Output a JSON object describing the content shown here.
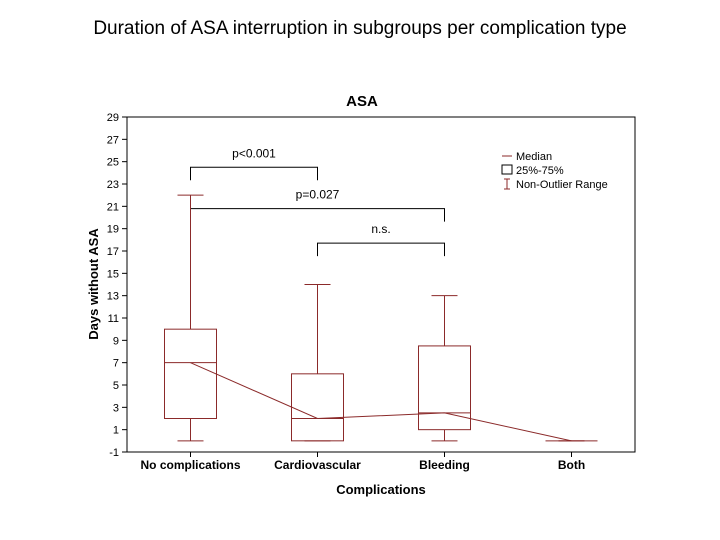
{
  "slide": {
    "title": "Duration of ASA interruption in subgroups per complication type"
  },
  "chart_data": {
    "type": "box",
    "title": "ASA",
    "xlabel": "Complications",
    "ylabel": "Days without ASA",
    "ylim": [
      -1,
      29
    ],
    "yticks": [
      -1,
      1,
      3,
      5,
      7,
      9,
      11,
      13,
      15,
      17,
      19,
      21,
      23,
      25,
      27,
      29
    ],
    "grid": false,
    "legend_position": "top-right",
    "legend": [
      "Median",
      "25%-75%",
      "Non-Outlier Range"
    ],
    "colors": {
      "series": "#8b2a2a",
      "frame": "#000000"
    },
    "categories": [
      "No complications",
      "Cardiovascular",
      "Bleeding",
      "Both"
    ],
    "boxes": [
      {
        "category": "No complications",
        "min": 0,
        "q1": 2,
        "median": 7,
        "q3": 10,
        "max": 22
      },
      {
        "category": "Cardiovascular",
        "min": 0,
        "q1": 0,
        "median": 2,
        "q3": 6,
        "max": 14
      },
      {
        "category": "Bleeding",
        "min": 0,
        "q1": 1,
        "median": 2.5,
        "q3": 8.5,
        "max": 13
      },
      {
        "category": "Both",
        "min": 0,
        "q1": 0,
        "median": 0,
        "q3": 0,
        "max": 0
      }
    ],
    "median_line": [
      7,
      2,
      2.5,
      0
    ],
    "annotations": [
      {
        "label": "p<0.001",
        "from": "No complications",
        "to": "Cardiovascular",
        "y": 24.5
      },
      {
        "label": "p=0.027",
        "from": "No complications",
        "to": "Bleeding",
        "y": 20.8
      },
      {
        "label": "n.s.",
        "from": "Cardiovascular",
        "to": "Bleeding",
        "y": 17.7
      }
    ]
  }
}
